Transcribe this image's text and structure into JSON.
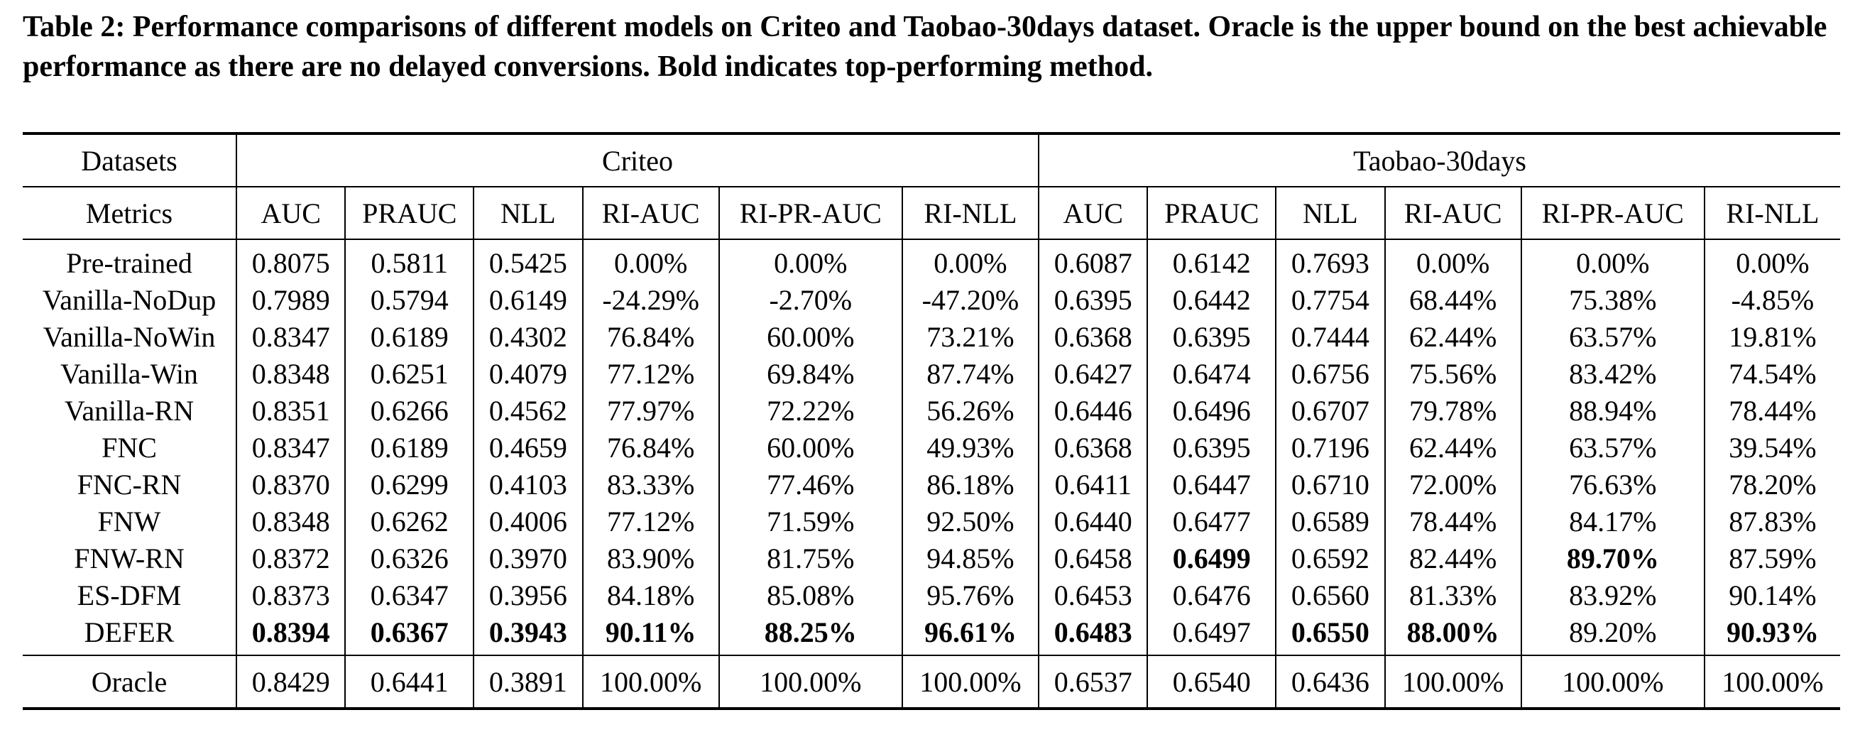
{
  "caption": {
    "label": "Table 2:",
    "text": "Performance comparisons of different models on Criteo and Taobao-30days dataset. Oracle is the upper bound on the best achievable performance as there are no delayed conversions. Bold indicates top-performing method."
  },
  "table": {
    "datasets_label": "Datasets",
    "metrics_label": "Metrics",
    "datasets": [
      "Criteo",
      "Taobao-30days"
    ],
    "metrics": [
      "AUC",
      "PRAUC",
      "NLL",
      "RI-AUC",
      "RI-PR-AUC",
      "RI-NLL",
      "AUC",
      "PRAUC",
      "NLL",
      "RI-AUC",
      "RI-PR-AUC",
      "RI-NLL"
    ],
    "rows": [
      {
        "name": "Pre-trained",
        "values": [
          "0.8075",
          "0.5811",
          "0.5425",
          "0.00%",
          "0.00%",
          "0.00%",
          "0.6087",
          "0.6142",
          "0.7693",
          "0.00%",
          "0.00%",
          "0.00%"
        ],
        "bold": []
      },
      {
        "name": "Vanilla-NoDup",
        "values": [
          "0.7989",
          "0.5794",
          "0.6149",
          "-24.29%",
          "-2.70%",
          "-47.20%",
          "0.6395",
          "0.6442",
          "0.7754",
          "68.44%",
          "75.38%",
          "-4.85%"
        ],
        "bold": []
      },
      {
        "name": "Vanilla-NoWin",
        "values": [
          "0.8347",
          "0.6189",
          "0.4302",
          "76.84%",
          "60.00%",
          "73.21%",
          "0.6368",
          "0.6395",
          "0.7444",
          "62.44%",
          "63.57%",
          "19.81%"
        ],
        "bold": []
      },
      {
        "name": "Vanilla-Win",
        "values": [
          "0.8348",
          "0.6251",
          "0.4079",
          "77.12%",
          "69.84%",
          "87.74%",
          "0.6427",
          "0.6474",
          "0.6756",
          "75.56%",
          "83.42%",
          "74.54%"
        ],
        "bold": []
      },
      {
        "name": "Vanilla-RN",
        "values": [
          "0.8351",
          "0.6266",
          "0.4562",
          "77.97%",
          "72.22%",
          "56.26%",
          "0.6446",
          "0.6496",
          "0.6707",
          "79.78%",
          "88.94%",
          "78.44%"
        ],
        "bold": []
      },
      {
        "name": "FNC",
        "values": [
          "0.8347",
          "0.6189",
          "0.4659",
          "76.84%",
          "60.00%",
          "49.93%",
          "0.6368",
          "0.6395",
          "0.7196",
          "62.44%",
          "63.57%",
          "39.54%"
        ],
        "bold": []
      },
      {
        "name": "FNC-RN",
        "values": [
          "0.8370",
          "0.6299",
          "0.4103",
          "83.33%",
          "77.46%",
          "86.18%",
          "0.6411",
          "0.6447",
          "0.6710",
          "72.00%",
          "76.63%",
          "78.20%"
        ],
        "bold": []
      },
      {
        "name": "FNW",
        "values": [
          "0.8348",
          "0.6262",
          "0.4006",
          "77.12%",
          "71.59%",
          "92.50%",
          "0.6440",
          "0.6477",
          "0.6589",
          "78.44%",
          "84.17%",
          "87.83%"
        ],
        "bold": []
      },
      {
        "name": "FNW-RN",
        "values": [
          "0.8372",
          "0.6326",
          "0.3970",
          "83.90%",
          "81.75%",
          "94.85%",
          "0.6458",
          "0.6499",
          "0.6592",
          "82.44%",
          "89.70%",
          "87.59%"
        ],
        "bold": [
          7,
          10
        ]
      },
      {
        "name": "ES-DFM",
        "values": [
          "0.8373",
          "0.6347",
          "0.3956",
          "84.18%",
          "85.08%",
          "95.76%",
          "0.6453",
          "0.6476",
          "0.6560",
          "81.33%",
          "83.92%",
          "90.14%"
        ],
        "bold": []
      },
      {
        "name": "DEFER",
        "values": [
          "0.8394",
          "0.6367",
          "0.3943",
          "90.11%",
          "88.25%",
          "96.61%",
          "0.6483",
          "0.6497",
          "0.6550",
          "88.00%",
          "89.20%",
          "90.93%"
        ],
        "bold": [
          0,
          1,
          2,
          3,
          4,
          5,
          6,
          8,
          9,
          11
        ]
      }
    ],
    "oracle": {
      "name": "Oracle",
      "values": [
        "0.8429",
        "0.6441",
        "0.3891",
        "100.00%",
        "100.00%",
        "100.00%",
        "0.6537",
        "0.6540",
        "0.6436",
        "100.00%",
        "100.00%",
        "100.00%"
      ],
      "bold": []
    }
  }
}
